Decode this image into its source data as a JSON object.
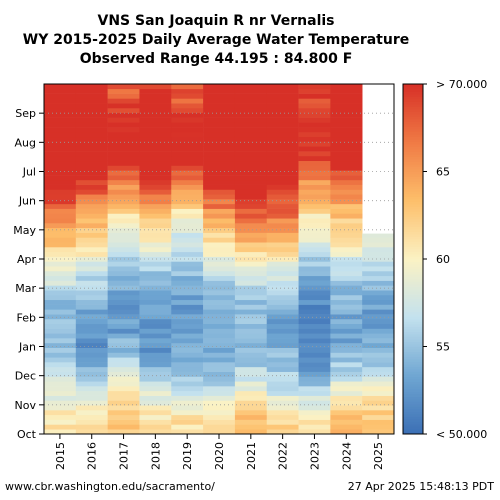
{
  "chart_data": {
    "type": "heatmap",
    "title_lines": [
      "VNS San Joaquin R nr Vernalis",
      "WY 2015-2025 Daily Average Water Temperature",
      "Observed Range 44.195 : 84.800 F"
    ],
    "x_ticks": [
      "2015",
      "2016",
      "2017",
      "2018",
      "2019",
      "2020",
      "2021",
      "2022",
      "2023",
      "2024",
      "2025"
    ],
    "y_ticks": [
      "Oct",
      "Nov",
      "Dec",
      "Jan",
      "Feb",
      "Mar",
      "Apr",
      "May",
      "Jun",
      "Jul",
      "Aug",
      "Sep"
    ],
    "colorbar": {
      "min": 50,
      "max": 70,
      "ticks": [
        "< 50.000",
        "55",
        "60",
        "65",
        "> 70.000"
      ],
      "tick_values": [
        50,
        55,
        60,
        65,
        70
      ],
      "colors": [
        "#3b6fb5",
        "#6fa6d2",
        "#c3e1ee",
        "#fbf2c4",
        "#fdbf6b",
        "#f07b45",
        "#d73027"
      ]
    },
    "grid": true,
    "monthly_mean_F": {
      "2015": [
        61,
        58,
        56,
        54,
        55,
        58,
        63,
        66,
        71,
        74,
        74,
        72
      ],
      "2016": [
        62,
        57,
        53,
        52,
        54,
        57,
        61,
        64,
        69,
        73,
        74,
        72
      ],
      "2017": [
        63,
        60,
        56,
        53,
        53,
        54,
        57,
        61,
        66,
        70,
        71,
        68
      ],
      "2018": [
        61,
        58,
        53,
        52,
        53,
        55,
        59,
        64,
        69,
        73,
        73,
        70
      ],
      "2019": [
        61,
        57,
        54,
        53,
        53,
        55,
        57,
        60,
        66,
        71,
        71,
        68
      ],
      "2020": [
        61,
        57,
        54,
        53,
        54,
        57,
        61,
        65,
        70,
        73,
        74,
        73
      ],
      "2021": [
        63,
        59,
        55,
        54,
        55,
        58,
        63,
        68,
        72,
        75,
        74,
        72
      ],
      "2022": [
        62,
        57,
        55,
        53,
        54,
        58,
        62,
        67,
        70,
        73,
        74,
        72
      ],
      "2023": [
        61,
        56,
        52,
        51,
        52,
        54,
        58,
        61,
        65,
        69,
        71,
        69
      ],
      "2024": [
        63,
        59,
        55,
        53,
        54,
        56,
        60,
        63,
        67,
        71,
        73,
        71
      ],
      "2025": [
        63,
        60,
        55,
        53,
        53,
        56,
        59
      ]
    },
    "days_observed": {
      "2025": 209
    }
  },
  "footer": {
    "left": "www.cbr.washington.edu/sacramento/",
    "right": "27 Apr 2025 15:48:13 PDT"
  }
}
